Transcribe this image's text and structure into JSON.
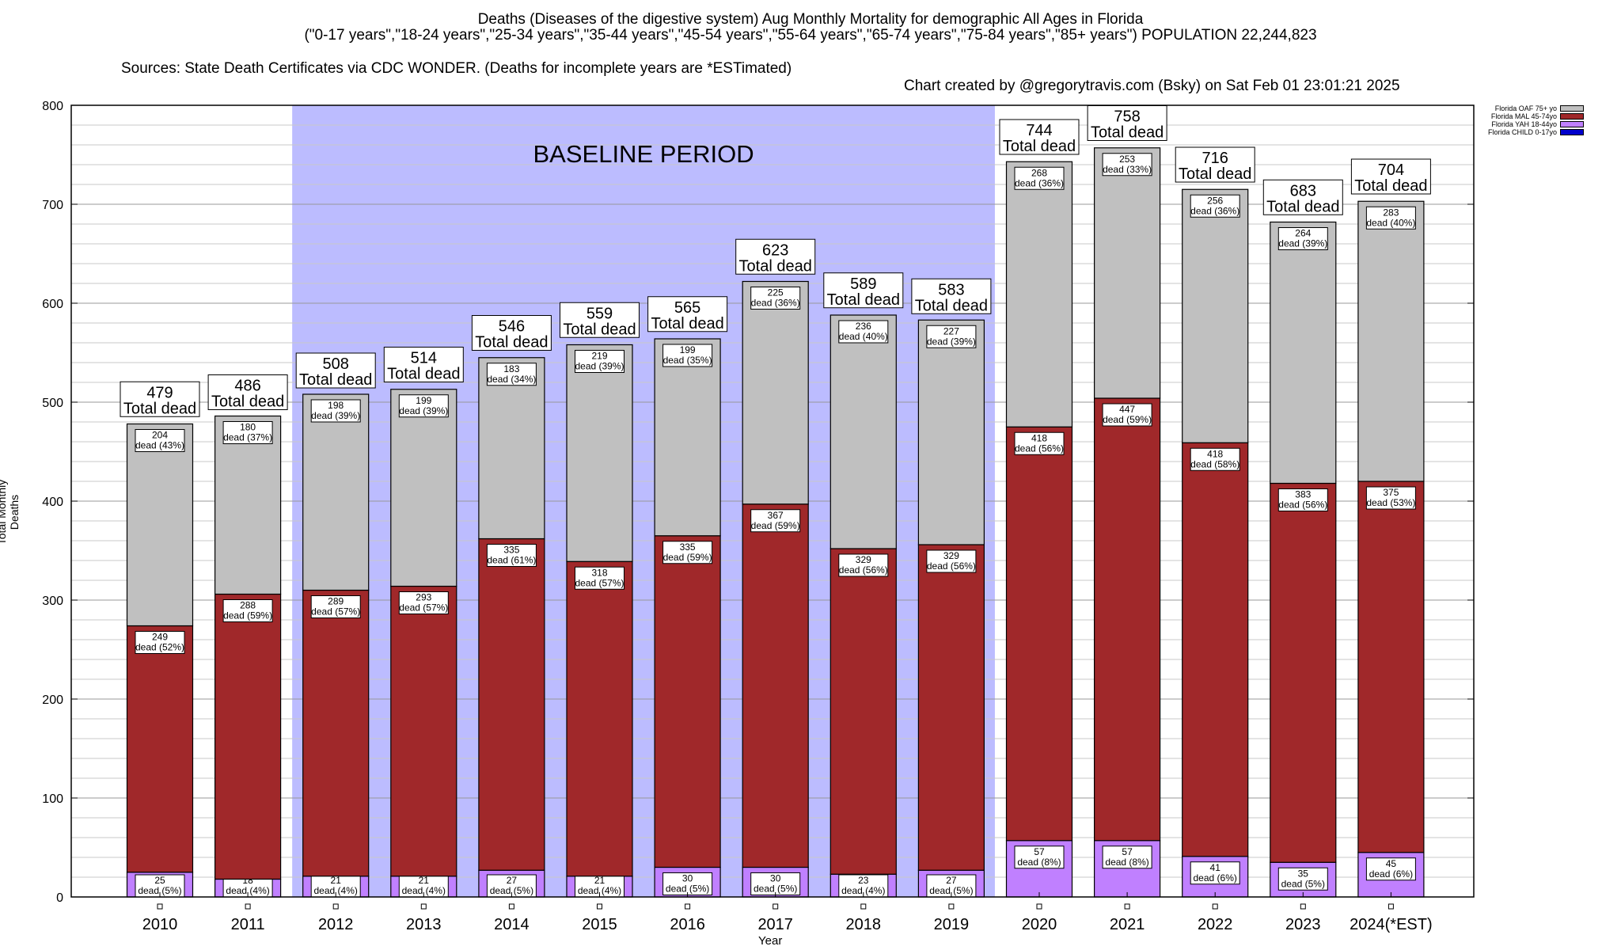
{
  "title": {
    "line1": "Deaths (Diseases of the digestive system) Aug Monthly Mortality for demographic All Ages in Florida",
    "line2": "(\"0-17 years\",\"18-24 years\",\"25-34 years\",\"35-44 years\",\"45-54 years\",\"55-64 years\",\"65-74 years\",\"75-84 years\",\"85+ years\") POPULATION 22,244,823",
    "sources_left": "Sources: State Death Certificates via CDC WONDER. (Deaths for incomplete years are *ESTimated)",
    "sources_right": "Chart created by @gregorytravis.com (Bsky) on Sat Feb 01 23:01:21 2025"
  },
  "legend": [
    {
      "label": "Florida OAF 75+ yo",
      "color": "#c0c0c0"
    },
    {
      "label": "Florida MAL 45-74yo",
      "color": "#a0282a"
    },
    {
      "label": "Florida YAH 18-44yo",
      "color": "#c080ff"
    },
    {
      "label": "Florida CHILD 0-17yo",
      "color": "#0000cc"
    }
  ],
  "chart_data": {
    "type": "bar",
    "stacked": true,
    "categories": [
      "2010",
      "2011",
      "2012",
      "2013",
      "2014",
      "2015",
      "2016",
      "2017",
      "2018",
      "2019",
      "2020",
      "2021",
      "2022",
      "2023",
      "2024(*EST)"
    ],
    "series": [
      {
        "name": "Florida CHILD 0-17yo",
        "values": [
          0,
          0,
          0,
          0,
          0,
          0,
          0,
          0,
          0,
          0,
          0,
          0,
          0,
          0,
          0
        ]
      },
      {
        "name": "Florida YAH 18-44yo",
        "values": [
          25,
          18,
          21,
          21,
          27,
          21,
          30,
          30,
          23,
          27,
          57,
          57,
          41,
          35,
          45
        ],
        "labels": [
          "25\ndead (5%)",
          "18\ndead (4%)",
          "21\ndead (4%)",
          "21\ndead (4%)",
          "27\ndead (5%)",
          "21\ndead (4%)",
          "30\ndead (5%)",
          "30\ndead (5%)",
          "23\ndead (4%)",
          "27\ndead (5%)",
          "57\ndead (8%)",
          "57\ndead (8%)",
          "41\ndead (6%)",
          "35\ndead (5%)",
          "45\ndead (6%)"
        ]
      },
      {
        "name": "Florida MAL 45-74yo",
        "values": [
          249,
          288,
          289,
          293,
          335,
          318,
          335,
          367,
          329,
          329,
          418,
          447,
          418,
          383,
          375
        ],
        "labels": [
          "249\ndead (52%)",
          "288\ndead (59%)",
          "289\ndead (57%)",
          "293\ndead (57%)",
          "335\ndead (61%)",
          "318\ndead (57%)",
          "335\ndead (59%)",
          "367\ndead (59%)",
          "329\ndead (56%)",
          "329\ndead (56%)",
          "418\ndead (56%)",
          "447\ndead (59%)",
          "418\ndead (58%)",
          "383\ndead (56%)",
          "375\ndead (53%)"
        ]
      },
      {
        "name": "Florida OAF 75+ yo",
        "values": [
          204,
          180,
          198,
          199,
          183,
          219,
          199,
          225,
          236,
          227,
          268,
          253,
          256,
          264,
          283
        ],
        "labels": [
          "204\ndead (43%)",
          "180\ndead (37%)",
          "198\ndead (39%)",
          "199\ndead (39%)",
          "183\ndead (34%)",
          "219\ndead (39%)",
          "199\ndead (35%)",
          "225\ndead (36%)",
          "236\ndead (40%)",
          "227\ndead (39%)",
          "268\ndead (36%)",
          "253\ndead (33%)",
          "256\ndead (36%)",
          "264\ndead (39%)",
          "283\ndead (40%)"
        ]
      }
    ],
    "totals": [
      479,
      486,
      508,
      514,
      546,
      559,
      565,
      623,
      589,
      583,
      744,
      758,
      716,
      683,
      704
    ],
    "total_suffix": "Total dead",
    "ylabel": "Total Monthly Deaths",
    "xlabel": "Year",
    "ylim": [
      0,
      800
    ],
    "yticks": [
      0,
      100,
      200,
      300,
      400,
      500,
      600,
      700,
      800
    ],
    "grid": true,
    "baseline": {
      "label": "BASELINE PERIOD",
      "from": "2012",
      "to": "2019",
      "color": "#bcbcff"
    }
  }
}
